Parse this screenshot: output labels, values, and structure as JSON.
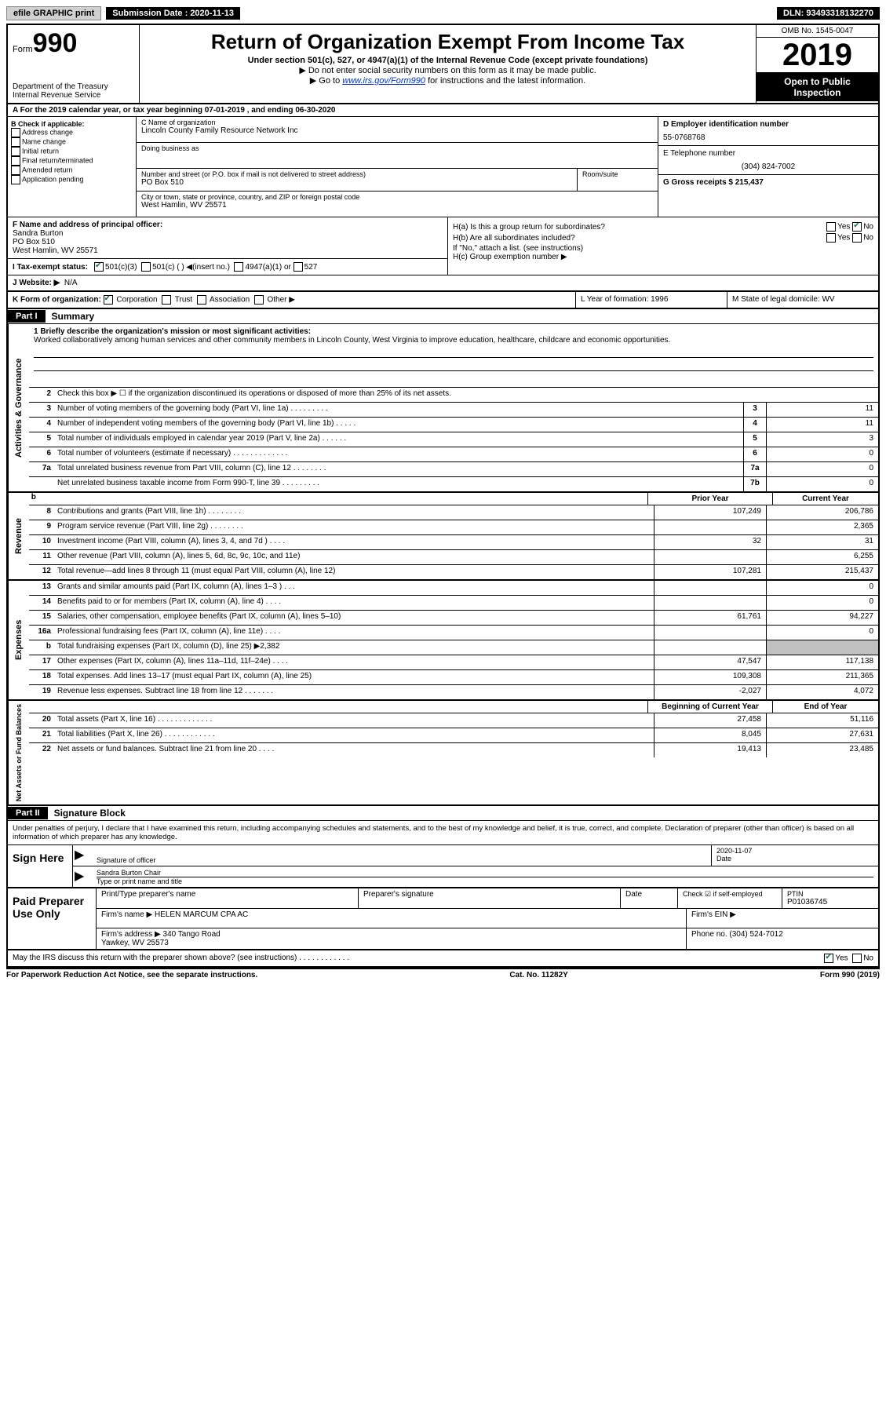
{
  "top": {
    "efile": "efile GRAPHIC print",
    "sub_label": "Submission Date : 2020-11-13",
    "dln": "DLN: 93493318132270"
  },
  "header": {
    "form_label": "Form",
    "form_num": "990",
    "dept": "Department of the Treasury Internal Revenue Service",
    "title": "Return of Organization Exempt From Income Tax",
    "sub1": "Under section 501(c), 527, or 4947(a)(1) of the Internal Revenue Code (except private foundations)",
    "tri1": "▶ Do not enter social security numbers on this form as it may be made public.",
    "tri2_pre": "▶ Go to ",
    "tri2_link": "www.irs.gov/Form990",
    "tri2_post": " for instructions and the latest information.",
    "omb": "OMB No. 1545-0047",
    "year": "2019",
    "open": "Open to Public Inspection"
  },
  "rowA": "A For the 2019 calendar year, or tax year beginning 07-01-2019    , and ending 06-30-2020",
  "B": {
    "label": "B Check if applicable:",
    "opts": [
      "Address change",
      "Name change",
      "Initial return",
      "Final return/terminated",
      "Amended return",
      "Application pending"
    ]
  },
  "C": {
    "name_lbl": "C Name of organization",
    "name": "Lincoln County Family Resource Network Inc",
    "dba_lbl": "Doing business as",
    "addr_lbl": "Number and street (or P.O. box if mail is not delivered to street address)",
    "room_lbl": "Room/suite",
    "addr": "PO Box 510",
    "city_lbl": "City or town, state or province, country, and ZIP or foreign postal code",
    "city": "West Hamlin, WV  25571"
  },
  "D": {
    "ein_lbl": "D Employer identification number",
    "ein": "55-0768768",
    "tel_lbl": "E Telephone number",
    "tel": "(304) 824-7002",
    "gross_lbl": "G Gross receipts $ 215,437"
  },
  "F": {
    "lbl": "F  Name and address of principal officer:",
    "name": "Sandra Burton",
    "addr1": "PO Box 510",
    "addr2": "West Hamlin, WV  25571"
  },
  "H": {
    "a": "H(a)  Is this a group return for subordinates?",
    "b": "H(b)  Are all subordinates included?",
    "note": "If \"No,\" attach a list. (see instructions)",
    "c": "H(c)  Group exemption number ▶",
    "yes": "Yes",
    "no": "No"
  },
  "I": {
    "lbl": "I   Tax-exempt status:",
    "o1": "501(c)(3)",
    "o2": "501(c) (   ) ◀(insert no.)",
    "o3": "4947(a)(1) or",
    "o4": "527"
  },
  "J": {
    "lbl": "J  Website: ▶",
    "val": "N/A"
  },
  "K": {
    "lbl": "K Form of organization:",
    "o1": "Corporation",
    "o2": "Trust",
    "o3": "Association",
    "o4": "Other ▶"
  },
  "L": {
    "lbl": "L Year of formation: 1996"
  },
  "M": {
    "lbl": "M State of legal domicile: WV"
  },
  "part1": {
    "hdr": "Part I",
    "title": "Summary"
  },
  "mission": {
    "lbl": "1  Briefly describe the organization's mission or most significant activities:",
    "text": "Worked collaboratively among human services and other community members in Lincoln County, West Virginia to improve education, healthcare, childcare and economic opportunities."
  },
  "line2": "Check this box ▶ ☐  if the organization discontinued its operations or disposed of more than 25% of its net assets.",
  "gov": [
    {
      "n": "3",
      "d": "Number of voting members of the governing body (Part VI, line 1a)   .   .   .   .   .   .   .   .   .",
      "b": "3",
      "v": "11"
    },
    {
      "n": "4",
      "d": "Number of independent voting members of the governing body (Part VI, line 1b)   .   .   .   .   .",
      "b": "4",
      "v": "11"
    },
    {
      "n": "5",
      "d": "Total number of individuals employed in calendar year 2019 (Part V, line 2a)   .   .   .   .   .   .",
      "b": "5",
      "v": "3"
    },
    {
      "n": "6",
      "d": "Total number of volunteers (estimate if necessary)   .   .   .   .   .   .   .   .   .   .   .   .   .",
      "b": "6",
      "v": "0"
    },
    {
      "n": "7a",
      "d": "Total unrelated business revenue from Part VIII, column (C), line 12   .   .   .   .   .   .   .   .",
      "b": "7a",
      "v": "0"
    },
    {
      "n": "",
      "d": "Net unrelated business taxable income from Form 990-T, line 39   .   .   .   .   .   .   .   .   .",
      "b": "7b",
      "v": "0"
    }
  ],
  "colh": {
    "prior": "Prior Year",
    "current": "Current Year"
  },
  "rev": [
    {
      "n": "8",
      "d": "Contributions and grants (Part VIII, line 1h)   .   .   .   .   .   .   .   .",
      "p": "107,249",
      "c": "206,786"
    },
    {
      "n": "9",
      "d": "Program service revenue (Part VIII, line 2g)   .   .   .   .   .   .   .   .",
      "p": "",
      "c": "2,365"
    },
    {
      "n": "10",
      "d": "Investment income (Part VIII, column (A), lines 3, 4, and 7d )   .   .   .   .",
      "p": "32",
      "c": "31"
    },
    {
      "n": "11",
      "d": "Other revenue (Part VIII, column (A), lines 5, 6d, 8c, 9c, 10c, and 11e)",
      "p": "",
      "c": "6,255"
    },
    {
      "n": "12",
      "d": "Total revenue—add lines 8 through 11 (must equal Part VIII, column (A), line 12)",
      "p": "107,281",
      "c": "215,437"
    }
  ],
  "exp": [
    {
      "n": "13",
      "d": "Grants and similar amounts paid (Part IX, column (A), lines 1–3 )   .   .   .",
      "p": "",
      "c": "0"
    },
    {
      "n": "14",
      "d": "Benefits paid to or for members (Part IX, column (A), line 4)   .   .   .   .",
      "p": "",
      "c": "0"
    },
    {
      "n": "15",
      "d": "Salaries, other compensation, employee benefits (Part IX, column (A), lines 5–10)",
      "p": "61,761",
      "c": "94,227"
    },
    {
      "n": "16a",
      "d": "Professional fundraising fees (Part IX, column (A), line 11e)   .   .   .   .",
      "p": "",
      "c": "0"
    },
    {
      "n": "b",
      "d": "Total fundraising expenses (Part IX, column (D), line 25) ▶2,382",
      "p": "shade",
      "c": "shade"
    },
    {
      "n": "17",
      "d": "Other expenses (Part IX, column (A), lines 11a–11d, 11f–24e)   .   .   .   .",
      "p": "47,547",
      "c": "117,138"
    },
    {
      "n": "18",
      "d": "Total expenses. Add lines 13–17 (must equal Part IX, column (A), line 25)",
      "p": "109,308",
      "c": "211,365"
    },
    {
      "n": "19",
      "d": "Revenue less expenses. Subtract line 18 from line 12   .   .   .   .   .   .   .",
      "p": "-2,027",
      "c": "4,072"
    }
  ],
  "colh2": {
    "prior": "Beginning of Current Year",
    "current": "End of Year"
  },
  "net": [
    {
      "n": "20",
      "d": "Total assets (Part X, line 16)   .   .   .   .   .   .   .   .   .   .   .   .   .",
      "p": "27,458",
      "c": "51,116"
    },
    {
      "n": "21",
      "d": "Total liabilities (Part X, line 26)   .   .   .   .   .   .   .   .   .   .   .   .",
      "p": "8,045",
      "c": "27,631"
    },
    {
      "n": "22",
      "d": "Net assets or fund balances. Subtract line 21 from line 20   .   .   .   .",
      "p": "19,413",
      "c": "23,485"
    }
  ],
  "sides": {
    "gov": "Activities & Governance",
    "rev": "Revenue",
    "exp": "Expenses",
    "net": "Net Assets or Fund Balances"
  },
  "part2": {
    "hdr": "Part II",
    "title": "Signature Block"
  },
  "decl": "Under penalties of perjury, I declare that I have examined this return, including accompanying schedules and statements, and to the best of my knowledge and belief, it is true, correct, and complete. Declaration of preparer (other than officer) is based on all information of which preparer has any knowledge.",
  "sign": {
    "here": "Sign Here",
    "sig_lbl": "Signature of officer",
    "date_lbl": "Date",
    "date": "2020-11-07",
    "name": "Sandra Burton Chair",
    "name_lbl": "Type or print name and title"
  },
  "prep": {
    "left": "Paid Preparer Use Only",
    "r1c1": "Print/Type preparer's name",
    "r1c2": "Preparer's signature",
    "r1c3": "Date",
    "r1c4_lbl": "Check ☑ if self-employed",
    "r1c5_lbl": "PTIN",
    "r1c5": "P01036745",
    "r2c1": "Firm's name    ▶ HELEN MARCUM CPA AC",
    "r2c2": "Firm's EIN ▶",
    "r3c1": "Firm's address ▶ 340 Tango Road",
    "r3c1b": "Yawkey, WV  25573",
    "r3c2": "Phone no. (304) 524-7012"
  },
  "discuss": "May the IRS discuss this return with the preparer shown above? (see instructions)   .   .   .   .   .   .   .   .   .   .   .   .",
  "footer": {
    "l": "For Paperwork Reduction Act Notice, see the separate instructions.",
    "m": "Cat. No. 11282Y",
    "r": "Form 990 (2019)"
  }
}
